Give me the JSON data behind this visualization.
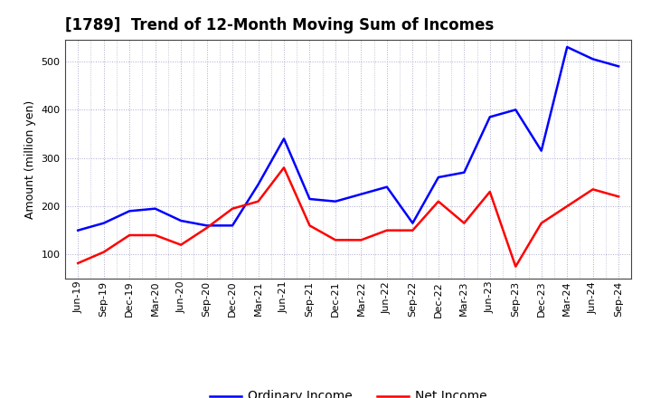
{
  "title": "[1789]  Trend of 12-Month Moving Sum of Incomes",
  "ylabel": "Amount (million yen)",
  "background_color": "#ffffff",
  "plot_background": "#ffffff",
  "grid_color": "#aaaacc",
  "x_labels": [
    "Jun-19",
    "Sep-19",
    "Dec-19",
    "Mar-20",
    "Jun-20",
    "Sep-20",
    "Dec-20",
    "Mar-21",
    "Jun-21",
    "Sep-21",
    "Dec-21",
    "Mar-22",
    "Jun-22",
    "Sep-22",
    "Dec-22",
    "Mar-23",
    "Jun-23",
    "Sep-23",
    "Dec-23",
    "Mar-24",
    "Jun-24",
    "Sep-24"
  ],
  "ordinary_income": [
    150,
    165,
    190,
    195,
    170,
    160,
    160,
    245,
    340,
    215,
    210,
    225,
    240,
    165,
    260,
    270,
    385,
    400,
    315,
    530,
    505,
    490
  ],
  "net_income": [
    82,
    105,
    140,
    140,
    120,
    155,
    195,
    210,
    280,
    160,
    130,
    130,
    150,
    150,
    210,
    165,
    230,
    75,
    165,
    200,
    235,
    220
  ],
  "ordinary_color": "#0000ff",
  "net_color": "#ff0000",
  "ylim_min": 50,
  "ylim_max": 545,
  "yticks": [
    100,
    200,
    300,
    400,
    500
  ],
  "line_width": 1.8,
  "title_fontsize": 12,
  "axis_fontsize": 9,
  "tick_fontsize": 8,
  "legend_fontsize": 10
}
